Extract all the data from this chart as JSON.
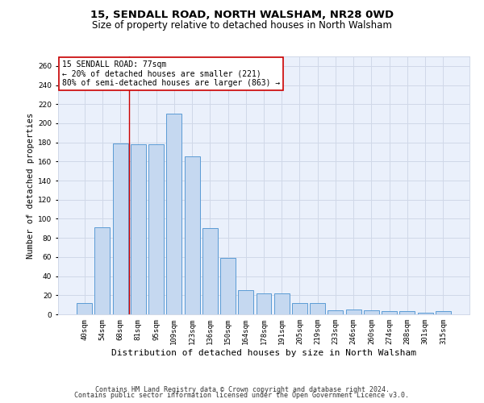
{
  "title1": "15, SENDALL ROAD, NORTH WALSHAM, NR28 0WD",
  "title2": "Size of property relative to detached houses in North Walsham",
  "xlabel": "Distribution of detached houses by size in North Walsham",
  "ylabel": "Number of detached properties",
  "footer1": "Contains HM Land Registry data © Crown copyright and database right 2024.",
  "footer2": "Contains public sector information licensed under the Open Government Licence v3.0.",
  "annotation_title": "15 SENDALL ROAD: 77sqm",
  "annotation_line1": "← 20% of detached houses are smaller (221)",
  "annotation_line2": "80% of semi-detached houses are larger (863) →",
  "categories": [
    "40sqm",
    "54sqm",
    "68sqm",
    "81sqm",
    "95sqm",
    "109sqm",
    "123sqm",
    "136sqm",
    "150sqm",
    "164sqm",
    "178sqm",
    "191sqm",
    "205sqm",
    "219sqm",
    "233sqm",
    "246sqm",
    "260sqm",
    "274sqm",
    "288sqm",
    "301sqm",
    "315sqm"
  ],
  "bar_heights": [
    12,
    91,
    179,
    178,
    178,
    210,
    165,
    90,
    59,
    25,
    22,
    22,
    12,
    12,
    4,
    5,
    4,
    3,
    3,
    2,
    3
  ],
  "bar_color": "#c5d8f0",
  "bar_edge_color": "#5b9bd5",
  "vline_x": 2.5,
  "vline_color": "#cc0000",
  "ylim_max": 270,
  "yticks": [
    0,
    20,
    40,
    60,
    80,
    100,
    120,
    140,
    160,
    180,
    200,
    220,
    240,
    260
  ],
  "grid_color": "#d0d8e8",
  "bg_color": "#eaf0fb",
  "annotation_box_facecolor": "#ffffff",
  "annotation_box_edgecolor": "#cc0000",
  "title1_fontsize": 9.5,
  "title2_fontsize": 8.5,
  "ylabel_fontsize": 7.5,
  "xlabel_fontsize": 8,
  "tick_fontsize": 6.5,
  "annotation_fontsize": 7,
  "footer_fontsize": 6
}
